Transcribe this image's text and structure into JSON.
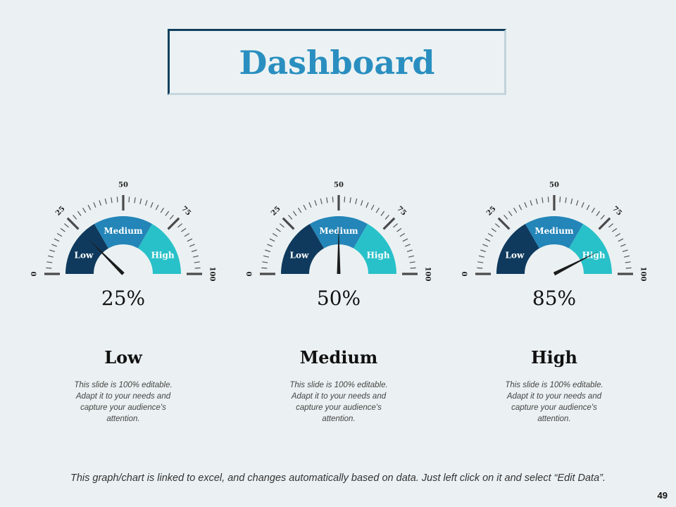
{
  "title": "Dashboard",
  "footer": "This graph/chart is linked to excel, and changes automatically based on data. Just left click on it and select “Edit Data”.",
  "page_number": "49",
  "colors": {
    "low": "#0f3a5e",
    "medium": "#2385b8",
    "high": "#29c1c9",
    "needle": "#1c1c1c",
    "ticks": "#555555"
  },
  "chart_data": [
    {
      "type": "gauge",
      "value": 25,
      "value_label": "25%",
      "level_title": "Low",
      "description": "This slide is 100% editable. Adapt it to your needs and capture your audience's attention.",
      "scale_min": 0,
      "scale_max": 100,
      "tick_labels": [
        "0",
        "25",
        "50",
        "75",
        "100"
      ],
      "zones": [
        {
          "label": "Low",
          "from": 0,
          "to": 33.3
        },
        {
          "label": "Medium",
          "from": 33.3,
          "to": 66.7
        },
        {
          "label": "High",
          "from": 66.7,
          "to": 100
        }
      ]
    },
    {
      "type": "gauge",
      "value": 50,
      "value_label": "50%",
      "level_title": "Medium",
      "description": "This slide is 100% editable. Adapt it to your needs and capture your audience's attention.",
      "scale_min": 0,
      "scale_max": 100,
      "tick_labels": [
        "0",
        "25",
        "50",
        "75",
        "100"
      ],
      "zones": [
        {
          "label": "Low",
          "from": 0,
          "to": 33.3
        },
        {
          "label": "Medium",
          "from": 33.3,
          "to": 66.7
        },
        {
          "label": "High",
          "from": 66.7,
          "to": 100
        }
      ]
    },
    {
      "type": "gauge",
      "value": 85,
      "value_label": "85%",
      "level_title": "High",
      "description": "This slide is 100% editable. Adapt it to your needs and capture your audience's attention.",
      "scale_min": 0,
      "scale_max": 100,
      "tick_labels": [
        "0",
        "25",
        "50",
        "75",
        "100"
      ],
      "zones": [
        {
          "label": "Low",
          "from": 0,
          "to": 33.3
        },
        {
          "label": "Medium",
          "from": 33.3,
          "to": 66.7
        },
        {
          "label": "High",
          "from": 66.7,
          "to": 100
        }
      ]
    }
  ]
}
